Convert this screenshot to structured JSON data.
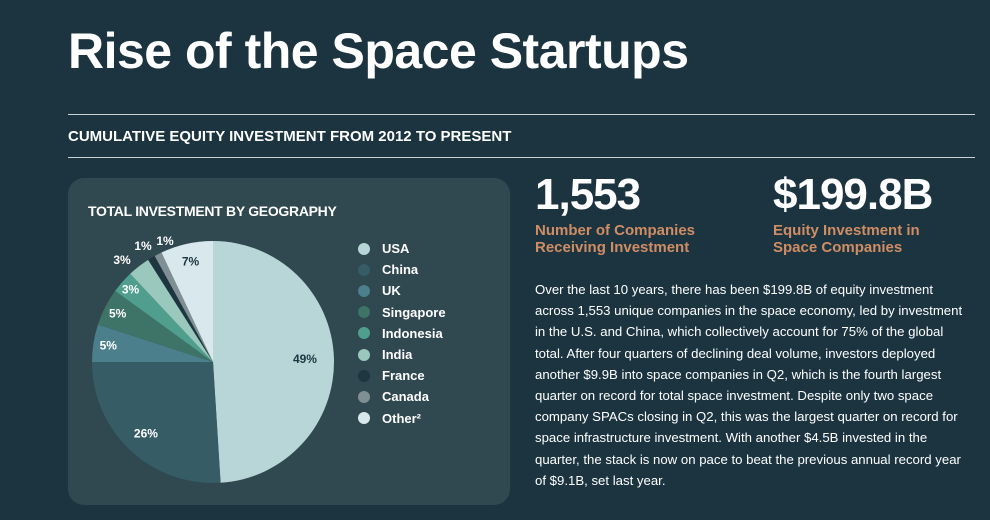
{
  "title": "Rise of the Space Startups",
  "subtitle": "CUMULATIVE EQUITY INVESTMENT FROM 2012 TO PRESENT",
  "stats": [
    {
      "value": "1,553",
      "caption_line1": "Number of Companies",
      "caption_line2": "Receiving Investment"
    },
    {
      "value": "$199.8B",
      "caption_line1": "Equity Investment in",
      "caption_line2": "Space Companies"
    }
  ],
  "body": "Over the last 10 years, there has been $199.8B of equity investment across 1,553 unique companies in the space economy, led by investment in the U.S. and China, which collectively account for 75% of the global total. After four quarters of declining deal volume, investors deployed another $9.9B into space companies in Q2, which is the fourth largest quarter on record for total space investment. Despite only two space company SPACs closing in Q2, this was the largest quarter on record for space infrastructure investment. With another $4.5B invested in the quarter, the stack is now on pace to beat the previous annual record year of $9.1B, set last year.",
  "chart_data": {
    "type": "pie",
    "title": "TOTAL INVESTMENT BY GEOGRAPHY",
    "legend_position": "right",
    "categories": [
      "USA",
      "China",
      "UK",
      "Singapore",
      "Indonesia",
      "India",
      "France",
      "Canada",
      "Other²"
    ],
    "values": [
      49,
      26,
      5,
      5,
      3,
      3,
      1,
      1,
      7
    ],
    "data_labels": [
      "49%",
      "26%",
      "5%",
      "5%",
      "3%",
      "3%",
      "1%",
      "1%",
      "7%"
    ],
    "colors": [
      "#b8d6d8",
      "#365c66",
      "#4a7f8b",
      "#3e7468",
      "#4f9e8e",
      "#9ac8bc",
      "#1d3640",
      "#7f8f94",
      "#d8e8ec"
    ],
    "label_colors": [
      "#1d3640",
      "#ffffff",
      "#ffffff",
      "#ffffff",
      "#ffffff",
      "#ffffff",
      "#ffffff",
      "#ffffff",
      "#1d3640"
    ]
  }
}
